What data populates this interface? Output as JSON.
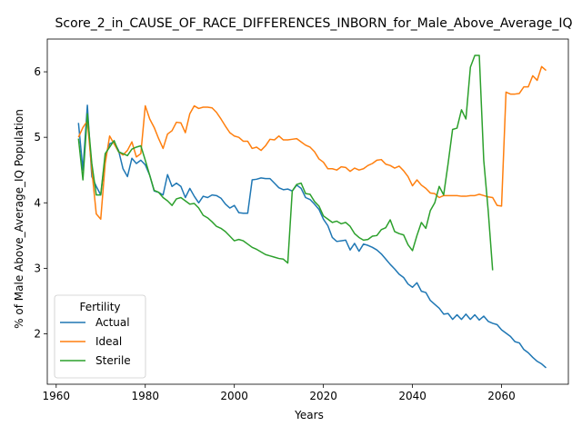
{
  "chart_data": {
    "type": "line",
    "title": "Score_2_in_CAUSE_OF_RACE_DIFFERENCES_INBORN_for_Male_Above_Average_IQ",
    "xlabel": "Years",
    "ylabel": "% of Male Above_Average_IQ Population",
    "xlim": [
      1958,
      2075
    ],
    "ylim": [
      1.23,
      6.5
    ],
    "xticks": [
      1960,
      1980,
      2000,
      2020,
      2040,
      2060
    ],
    "yticks": [
      2,
      3,
      4,
      5,
      6
    ],
    "grid": false,
    "legend": {
      "title": "Fertility",
      "placement": "lower-left"
    },
    "series": [
      {
        "name": "Actual",
        "color": "#1f77b4",
        "points": [
          [
            1965,
            5.22
          ],
          [
            1966,
            4.5
          ],
          [
            1967,
            5.49
          ],
          [
            1968,
            4.4
          ],
          [
            1969,
            4.25
          ],
          [
            1970,
            4.12
          ],
          [
            1971,
            4.7
          ],
          [
            1972,
            4.9
          ],
          [
            1973,
            4.93
          ],
          [
            1974,
            4.8
          ],
          [
            1975,
            4.52
          ],
          [
            1976,
            4.4
          ],
          [
            1977,
            4.68
          ],
          [
            1978,
            4.6
          ],
          [
            1979,
            4.65
          ],
          [
            1980,
            4.58
          ],
          [
            1981,
            4.42
          ],
          [
            1982,
            4.18
          ],
          [
            1983,
            4.16
          ],
          [
            1984,
            4.12
          ],
          [
            1985,
            4.43
          ],
          [
            1986,
            4.25
          ],
          [
            1987,
            4.3
          ],
          [
            1988,
            4.25
          ],
          [
            1989,
            4.08
          ],
          [
            1990,
            4.22
          ],
          [
            1991,
            4.1
          ],
          [
            1992,
            4.0
          ],
          [
            1993,
            4.1
          ],
          [
            1994,
            4.08
          ],
          [
            1995,
            4.12
          ],
          [
            1996,
            4.11
          ],
          [
            1997,
            4.07
          ],
          [
            1998,
            3.98
          ],
          [
            1999,
            3.92
          ],
          [
            2000,
            3.96
          ],
          [
            2001,
            3.85
          ],
          [
            2002,
            3.84
          ],
          [
            2003,
            3.84
          ],
          [
            2004,
            4.35
          ],
          [
            2005,
            4.36
          ],
          [
            2006,
            4.38
          ],
          [
            2007,
            4.37
          ],
          [
            2008,
            4.37
          ],
          [
            2009,
            4.3
          ],
          [
            2010,
            4.23
          ],
          [
            2011,
            4.2
          ],
          [
            2012,
            4.21
          ],
          [
            2013,
            4.18
          ],
          [
            2014,
            4.27
          ],
          [
            2015,
            4.22
          ],
          [
            2016,
            4.08
          ],
          [
            2017,
            4.05
          ],
          [
            2018,
            3.98
          ],
          [
            2019,
            3.9
          ],
          [
            2020,
            3.75
          ],
          [
            2021,
            3.65
          ],
          [
            2022,
            3.47
          ],
          [
            2023,
            3.41
          ],
          [
            2024,
            3.42
          ],
          [
            2025,
            3.43
          ],
          [
            2026,
            3.28
          ],
          [
            2027,
            3.38
          ],
          [
            2028,
            3.26
          ],
          [
            2029,
            3.37
          ],
          [
            2030,
            3.35
          ],
          [
            2031,
            3.32
          ],
          [
            2032,
            3.28
          ],
          [
            2033,
            3.22
          ],
          [
            2034,
            3.14
          ],
          [
            2035,
            3.06
          ],
          [
            2036,
            2.99
          ],
          [
            2037,
            2.91
          ],
          [
            2038,
            2.86
          ],
          [
            2039,
            2.76
          ],
          [
            2040,
            2.71
          ],
          [
            2041,
            2.78
          ],
          [
            2042,
            2.65
          ],
          [
            2043,
            2.63
          ],
          [
            2044,
            2.51
          ],
          [
            2045,
            2.45
          ],
          [
            2046,
            2.39
          ],
          [
            2047,
            2.3
          ],
          [
            2048,
            2.31
          ],
          [
            2049,
            2.22
          ],
          [
            2050,
            2.29
          ],
          [
            2051,
            2.22
          ],
          [
            2052,
            2.3
          ],
          [
            2053,
            2.22
          ],
          [
            2054,
            2.29
          ],
          [
            2055,
            2.21
          ],
          [
            2056,
            2.27
          ],
          [
            2057,
            2.19
          ],
          [
            2058,
            2.16
          ],
          [
            2059,
            2.14
          ],
          [
            2060,
            2.06
          ],
          [
            2061,
            2.01
          ],
          [
            2062,
            1.96
          ],
          [
            2063,
            1.88
          ],
          [
            2064,
            1.86
          ],
          [
            2065,
            1.76
          ],
          [
            2066,
            1.71
          ],
          [
            2067,
            1.64
          ],
          [
            2068,
            1.58
          ],
          [
            2069,
            1.54
          ],
          [
            2070,
            1.48
          ]
        ]
      },
      {
        "name": "Ideal",
        "color": "#ff7f0e",
        "points": [
          [
            1965,
            5.0
          ],
          [
            1966,
            5.15
          ],
          [
            1967,
            5.25
          ],
          [
            1968,
            4.5
          ],
          [
            1969,
            3.83
          ],
          [
            1970,
            3.75
          ],
          [
            1971,
            4.6
          ],
          [
            1972,
            5.02
          ],
          [
            1973,
            4.9
          ],
          [
            1974,
            4.78
          ],
          [
            1975,
            4.73
          ],
          [
            1976,
            4.8
          ],
          [
            1977,
            4.93
          ],
          [
            1978,
            4.7
          ],
          [
            1979,
            4.75
          ],
          [
            1980,
            5.48
          ],
          [
            1981,
            5.28
          ],
          [
            1982,
            5.15
          ],
          [
            1983,
            4.98
          ],
          [
            1984,
            4.83
          ],
          [
            1985,
            5.05
          ],
          [
            1986,
            5.1
          ],
          [
            1987,
            5.23
          ],
          [
            1988,
            5.22
          ],
          [
            1989,
            5.07
          ],
          [
            1990,
            5.36
          ],
          [
            1991,
            5.48
          ],
          [
            1992,
            5.44
          ],
          [
            1993,
            5.46
          ],
          [
            1994,
            5.46
          ],
          [
            1995,
            5.45
          ],
          [
            1996,
            5.38
          ],
          [
            1997,
            5.28
          ],
          [
            1998,
            5.17
          ],
          [
            1999,
            5.07
          ],
          [
            2000,
            5.02
          ],
          [
            2001,
            5.0
          ],
          [
            2002,
            4.94
          ],
          [
            2003,
            4.94
          ],
          [
            2004,
            4.83
          ],
          [
            2005,
            4.85
          ],
          [
            2006,
            4.8
          ],
          [
            2007,
            4.87
          ],
          [
            2008,
            4.97
          ],
          [
            2009,
            4.96
          ],
          [
            2010,
            5.02
          ],
          [
            2011,
            4.96
          ],
          [
            2012,
            4.96
          ],
          [
            2013,
            4.97
          ],
          [
            2014,
            4.98
          ],
          [
            2015,
            4.93
          ],
          [
            2016,
            4.88
          ],
          [
            2017,
            4.85
          ],
          [
            2018,
            4.78
          ],
          [
            2019,
            4.67
          ],
          [
            2020,
            4.62
          ],
          [
            2021,
            4.52
          ],
          [
            2022,
            4.52
          ],
          [
            2023,
            4.5
          ],
          [
            2024,
            4.55
          ],
          [
            2025,
            4.54
          ],
          [
            2026,
            4.48
          ],
          [
            2027,
            4.53
          ],
          [
            2028,
            4.5
          ],
          [
            2029,
            4.52
          ],
          [
            2030,
            4.57
          ],
          [
            2031,
            4.6
          ],
          [
            2032,
            4.65
          ],
          [
            2033,
            4.66
          ],
          [
            2034,
            4.59
          ],
          [
            2035,
            4.57
          ],
          [
            2036,
            4.53
          ],
          [
            2037,
            4.56
          ],
          [
            2038,
            4.49
          ],
          [
            2039,
            4.4
          ],
          [
            2040,
            4.26
          ],
          [
            2041,
            4.35
          ],
          [
            2042,
            4.27
          ],
          [
            2043,
            4.22
          ],
          [
            2044,
            4.15
          ],
          [
            2045,
            4.14
          ],
          [
            2046,
            4.08
          ],
          [
            2047,
            4.11
          ],
          [
            2048,
            4.11
          ],
          [
            2049,
            4.11
          ],
          [
            2050,
            4.11
          ],
          [
            2051,
            4.1
          ],
          [
            2052,
            4.1
          ],
          [
            2053,
            4.11
          ],
          [
            2054,
            4.11
          ],
          [
            2055,
            4.13
          ],
          [
            2056,
            4.11
          ],
          [
            2057,
            4.09
          ],
          [
            2058,
            4.08
          ],
          [
            2059,
            3.96
          ],
          [
            2060,
            3.95
          ],
          [
            2061,
            5.69
          ],
          [
            2062,
            5.66
          ],
          [
            2063,
            5.66
          ],
          [
            2064,
            5.67
          ],
          [
            2065,
            5.77
          ],
          [
            2066,
            5.77
          ],
          [
            2067,
            5.94
          ],
          [
            2068,
            5.87
          ],
          [
            2069,
            6.08
          ],
          [
            2070,
            6.02
          ]
        ]
      },
      {
        "name": "Sterile",
        "color": "#2ca02c",
        "points": [
          [
            1965,
            4.98
          ],
          [
            1966,
            4.35
          ],
          [
            1967,
            5.36
          ],
          [
            1968,
            4.6
          ],
          [
            1969,
            4.12
          ],
          [
            1970,
            4.12
          ],
          [
            1971,
            4.75
          ],
          [
            1972,
            4.85
          ],
          [
            1973,
            4.95
          ],
          [
            1974,
            4.78
          ],
          [
            1975,
            4.75
          ],
          [
            1976,
            4.72
          ],
          [
            1977,
            4.82
          ],
          [
            1978,
            4.85
          ],
          [
            1979,
            4.87
          ],
          [
            1980,
            4.65
          ],
          [
            1981,
            4.42
          ],
          [
            1982,
            4.19
          ],
          [
            1983,
            4.16
          ],
          [
            1984,
            4.08
          ],
          [
            1985,
            4.03
          ],
          [
            1986,
            3.96
          ],
          [
            1987,
            4.06
          ],
          [
            1988,
            4.08
          ],
          [
            1989,
            4.03
          ],
          [
            1990,
            3.98
          ],
          [
            1991,
            3.99
          ],
          [
            1992,
            3.92
          ],
          [
            1993,
            3.81
          ],
          [
            1994,
            3.77
          ],
          [
            1995,
            3.71
          ],
          [
            1996,
            3.64
          ],
          [
            1997,
            3.61
          ],
          [
            1998,
            3.56
          ],
          [
            1999,
            3.49
          ],
          [
            2000,
            3.42
          ],
          [
            2001,
            3.44
          ],
          [
            2002,
            3.42
          ],
          [
            2003,
            3.37
          ],
          [
            2004,
            3.32
          ],
          [
            2005,
            3.29
          ],
          [
            2006,
            3.25
          ],
          [
            2007,
            3.21
          ],
          [
            2008,
            3.19
          ],
          [
            2009,
            3.17
          ],
          [
            2010,
            3.15
          ],
          [
            2011,
            3.14
          ],
          [
            2012,
            3.08
          ],
          [
            2013,
            4.18
          ],
          [
            2014,
            4.28
          ],
          [
            2015,
            4.3
          ],
          [
            2016,
            4.14
          ],
          [
            2017,
            4.13
          ],
          [
            2018,
            4.02
          ],
          [
            2019,
            3.95
          ],
          [
            2020,
            3.8
          ],
          [
            2021,
            3.75
          ],
          [
            2022,
            3.7
          ],
          [
            2023,
            3.72
          ],
          [
            2024,
            3.68
          ],
          [
            2025,
            3.7
          ],
          [
            2026,
            3.64
          ],
          [
            2027,
            3.53
          ],
          [
            2028,
            3.47
          ],
          [
            2029,
            3.43
          ],
          [
            2030,
            3.44
          ],
          [
            2031,
            3.49
          ],
          [
            2032,
            3.5
          ],
          [
            2033,
            3.59
          ],
          [
            2034,
            3.62
          ],
          [
            2035,
            3.74
          ],
          [
            2036,
            3.56
          ],
          [
            2037,
            3.53
          ],
          [
            2038,
            3.51
          ],
          [
            2039,
            3.36
          ],
          [
            2040,
            3.27
          ],
          [
            2041,
            3.5
          ],
          [
            2042,
            3.7
          ],
          [
            2043,
            3.61
          ],
          [
            2044,
            3.88
          ],
          [
            2045,
            4.0
          ],
          [
            2046,
            4.25
          ],
          [
            2047,
            4.12
          ],
          [
            2048,
            4.6
          ],
          [
            2049,
            5.12
          ],
          [
            2050,
            5.14
          ],
          [
            2051,
            5.42
          ],
          [
            2052,
            5.28
          ],
          [
            2053,
            6.07
          ],
          [
            2054,
            6.25
          ],
          [
            2055,
            6.25
          ],
          [
            2056,
            4.65
          ],
          [
            2057,
            3.88
          ],
          [
            2058,
            2.97
          ]
        ]
      }
    ]
  }
}
